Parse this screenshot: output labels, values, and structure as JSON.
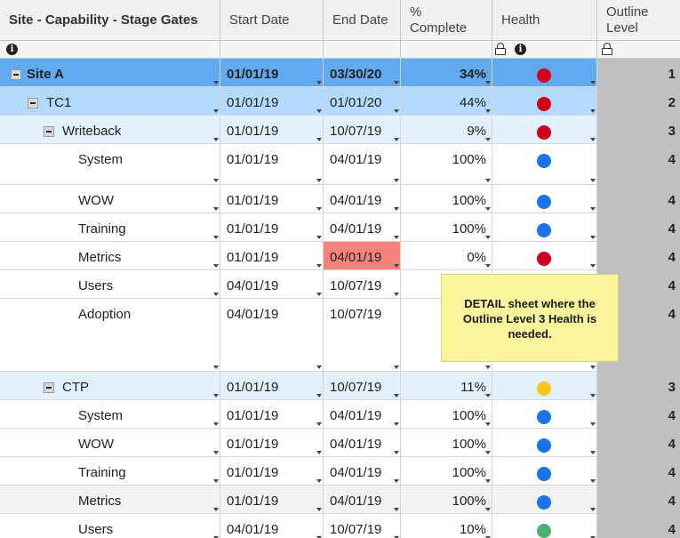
{
  "columns": {
    "primary": "Site - Capability - Stage Gates",
    "start": "Start Date",
    "end": "End Date",
    "pct_line1": "%",
    "pct_line2": "Complete",
    "health": "Health",
    "outline_line1": "Outline",
    "outline_line2": "Level"
  },
  "colors": {
    "red": "#d0021b",
    "blue": "#1a73e8",
    "yellow": "#f5c518",
    "green": "#4caf6e",
    "overdue_fill": "#f4837d"
  },
  "rows": [
    {
      "name": "Site A",
      "start": "01/01/19",
      "end": "03/30/20",
      "pct": "34%",
      "health": "red",
      "outline": "1"
    },
    {
      "name": "TC1",
      "start": "01/01/19",
      "end": "01/01/20",
      "pct": "44%",
      "health": "red",
      "outline": "2"
    },
    {
      "name": "Writeback",
      "start": "01/01/19",
      "end": "10/07/19",
      "pct": "9%",
      "health": "red",
      "outline": "3"
    },
    {
      "name": "System",
      "start": "01/01/19",
      "end": "04/01/19",
      "pct": "100%",
      "health": "blue",
      "outline": "4"
    },
    {
      "name": "WOW",
      "start": "01/01/19",
      "end": "04/01/19",
      "pct": "100%",
      "health": "blue",
      "outline": "4"
    },
    {
      "name": "Training",
      "start": "01/01/19",
      "end": "04/01/19",
      "pct": "100%",
      "health": "blue",
      "outline": "4"
    },
    {
      "name": "Metrics",
      "start": "01/01/19",
      "end": "04/01/19",
      "pct": "0%",
      "health": "red",
      "outline": "4"
    },
    {
      "name": "Users",
      "start": "04/01/19",
      "end": "10/07/19",
      "pct": "",
      "health": "",
      "outline": "4"
    },
    {
      "name": "Adoption",
      "start": "04/01/19",
      "end": "10/07/19",
      "pct": "",
      "health": "",
      "outline": "4"
    },
    {
      "name": "CTP",
      "start": "01/01/19",
      "end": "10/07/19",
      "pct": "11%",
      "health": "yellow",
      "outline": "3"
    },
    {
      "name": "System",
      "start": "01/01/19",
      "end": "04/01/19",
      "pct": "100%",
      "health": "blue",
      "outline": "4"
    },
    {
      "name": "WOW",
      "start": "01/01/19",
      "end": "04/01/19",
      "pct": "100%",
      "health": "blue",
      "outline": "4"
    },
    {
      "name": "Training",
      "start": "01/01/19",
      "end": "04/01/19",
      "pct": "100%",
      "health": "blue",
      "outline": "4"
    },
    {
      "name": "Metrics",
      "start": "01/01/19",
      "end": "04/01/19",
      "pct": "100%",
      "health": "blue",
      "outline": "4"
    },
    {
      "name": "Users",
      "start": "04/01/19",
      "end": "10/07/19",
      "pct": "10%",
      "health": "green",
      "outline": "4"
    }
  ],
  "note": "DETAIL sheet where the Outline Level 3 Health is needed."
}
